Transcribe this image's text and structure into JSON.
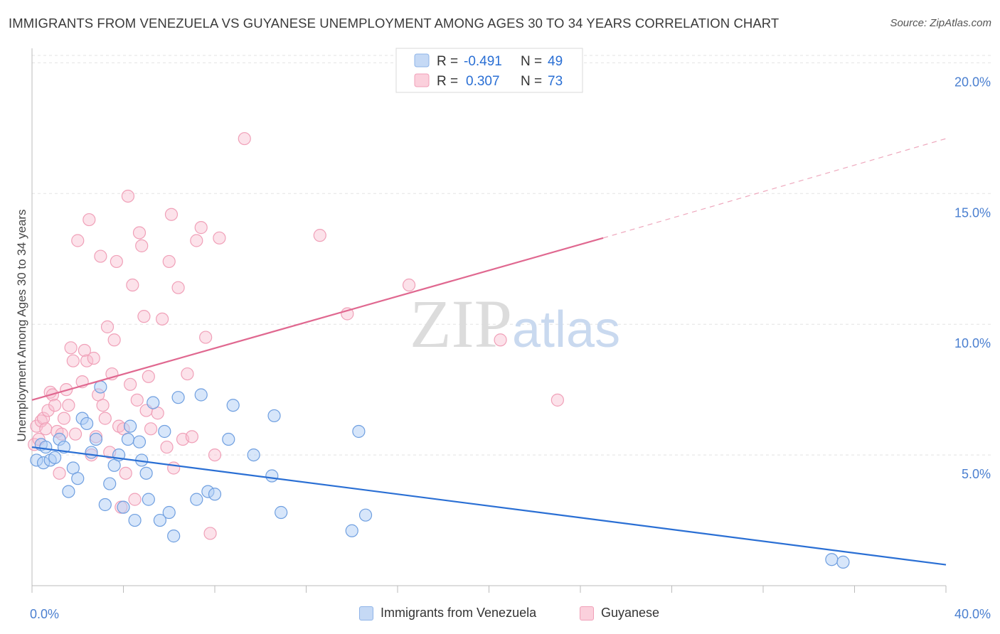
{
  "header": {
    "title": "IMMIGRANTS FROM VENEZUELA VS GUYANESE UNEMPLOYMENT AMONG AGES 30 TO 34 YEARS CORRELATION CHART",
    "source": "Source: ZipAtlas.com"
  },
  "watermark": {
    "zip": "ZIP",
    "atlas": "atlas"
  },
  "stats": [
    {
      "r_label": "R =",
      "r_value": "-0.491",
      "n_label": "N =",
      "n_value": "49"
    },
    {
      "r_label": "R =",
      "r_value": "0.307",
      "n_label": "N =",
      "n_value": "73"
    }
  ],
  "chart_data": {
    "type": "scatter",
    "title": "IMMIGRANTS FROM VENEZUELA VS GUYANESE UNEMPLOYMENT AMONG AGES 30 TO 34 YEARS CORRELATION CHART",
    "xlabel": "",
    "ylabel": "Unemployment Among Ages 30 to 34 years",
    "xlim": [
      0,
      40
    ],
    "ylim": [
      0,
      20.5
    ],
    "x_ticks": [
      0,
      40
    ],
    "x_tick_labels": [
      "0.0%",
      "40.0%"
    ],
    "y_ticks": [
      5,
      10,
      15,
      20
    ],
    "y_tick_labels": [
      "5.0%",
      "10.0%",
      "15.0%",
      "20.0%"
    ],
    "grid": true,
    "legend_position": "bottom-center",
    "colors": {
      "venezuela": "#6f9fe0",
      "guyanese": "#f0a0b8",
      "venezuela_line": "#2a6fd4",
      "guyanese_line": "#e06890"
    },
    "series": [
      {
        "name": "Immigrants from Venezuela",
        "trend": {
          "x": [
            0,
            40
          ],
          "y": [
            5.3,
            0.8
          ]
        },
        "points": [
          [
            0.2,
            4.8
          ],
          [
            0.4,
            5.4
          ],
          [
            0.5,
            4.7
          ],
          [
            0.6,
            5.3
          ],
          [
            0.8,
            4.8
          ],
          [
            1.0,
            4.9
          ],
          [
            1.2,
            5.6
          ],
          [
            1.4,
            5.3
          ],
          [
            1.6,
            3.6
          ],
          [
            1.8,
            4.5
          ],
          [
            2.0,
            4.1
          ],
          [
            2.2,
            6.4
          ],
          [
            2.4,
            6.2
          ],
          [
            2.6,
            5.1
          ],
          [
            2.8,
            5.6
          ],
          [
            3.0,
            7.6
          ],
          [
            3.2,
            3.1
          ],
          [
            3.4,
            3.9
          ],
          [
            3.6,
            4.6
          ],
          [
            3.8,
            5.0
          ],
          [
            4.0,
            3.0
          ],
          [
            4.2,
            5.6
          ],
          [
            4.3,
            6.1
          ],
          [
            4.5,
            2.5
          ],
          [
            4.7,
            5.5
          ],
          [
            4.8,
            4.8
          ],
          [
            5.0,
            4.3
          ],
          [
            5.1,
            3.3
          ],
          [
            5.3,
            7.0
          ],
          [
            5.6,
            2.5
          ],
          [
            5.8,
            5.9
          ],
          [
            6.0,
            2.8
          ],
          [
            6.2,
            1.9
          ],
          [
            6.4,
            7.2
          ],
          [
            7.2,
            3.3
          ],
          [
            7.4,
            7.3
          ],
          [
            7.7,
            3.6
          ],
          [
            8.0,
            3.5
          ],
          [
            8.6,
            5.6
          ],
          [
            8.8,
            6.9
          ],
          [
            9.7,
            5.0
          ],
          [
            10.5,
            4.2
          ],
          [
            10.6,
            6.5
          ],
          [
            10.9,
            2.8
          ],
          [
            14.0,
            2.1
          ],
          [
            14.3,
            5.9
          ],
          [
            14.6,
            2.7
          ],
          [
            35.0,
            1.0
          ],
          [
            35.5,
            0.9
          ]
        ]
      },
      {
        "name": "Guyanese",
        "trend": {
          "x": [
            0,
            25
          ],
          "y": [
            7.1,
            13.3
          ]
        },
        "trend_dashed": {
          "x": [
            25,
            40
          ],
          "y": [
            13.3,
            17.1
          ]
        },
        "points": [
          [
            0.1,
            5.4
          ],
          [
            0.2,
            6.1
          ],
          [
            0.3,
            5.6
          ],
          [
            0.4,
            6.3
          ],
          [
            0.5,
            6.4
          ],
          [
            0.6,
            6.0
          ],
          [
            0.7,
            6.7
          ],
          [
            0.8,
            7.4
          ],
          [
            0.9,
            7.3
          ],
          [
            1.0,
            6.9
          ],
          [
            1.1,
            5.9
          ],
          [
            1.2,
            4.3
          ],
          [
            1.3,
            5.8
          ],
          [
            1.4,
            6.4
          ],
          [
            1.5,
            7.5
          ],
          [
            1.6,
            6.9
          ],
          [
            1.7,
            9.1
          ],
          [
            1.8,
            8.6
          ],
          [
            1.9,
            5.8
          ],
          [
            2.0,
            13.2
          ],
          [
            2.2,
            7.8
          ],
          [
            2.3,
            9.0
          ],
          [
            2.4,
            8.6
          ],
          [
            2.5,
            14.0
          ],
          [
            2.6,
            5.0
          ],
          [
            2.7,
            8.7
          ],
          [
            2.8,
            5.7
          ],
          [
            2.9,
            7.3
          ],
          [
            3.0,
            12.6
          ],
          [
            3.1,
            6.9
          ],
          [
            3.2,
            6.4
          ],
          [
            3.3,
            9.9
          ],
          [
            3.4,
            5.1
          ],
          [
            3.5,
            8.1
          ],
          [
            3.6,
            9.4
          ],
          [
            3.7,
            12.4
          ],
          [
            3.8,
            6.1
          ],
          [
            3.9,
            3.0
          ],
          [
            4.0,
            6.0
          ],
          [
            4.1,
            4.3
          ],
          [
            4.2,
            14.9
          ],
          [
            4.3,
            7.7
          ],
          [
            4.4,
            11.5
          ],
          [
            4.5,
            3.3
          ],
          [
            4.6,
            7.1
          ],
          [
            4.7,
            13.5
          ],
          [
            4.8,
            13.0
          ],
          [
            4.9,
            10.3
          ],
          [
            5.0,
            6.7
          ],
          [
            5.1,
            8.0
          ],
          [
            5.2,
            6.0
          ],
          [
            5.5,
            6.6
          ],
          [
            5.7,
            10.2
          ],
          [
            5.9,
            5.3
          ],
          [
            6.0,
            12.4
          ],
          [
            6.1,
            14.2
          ],
          [
            6.2,
            4.5
          ],
          [
            6.4,
            11.4
          ],
          [
            6.6,
            5.6
          ],
          [
            6.8,
            8.1
          ],
          [
            7.0,
            5.7
          ],
          [
            7.2,
            13.2
          ],
          [
            7.4,
            13.7
          ],
          [
            7.6,
            9.5
          ],
          [
            7.8,
            2.0
          ],
          [
            8.0,
            5.0
          ],
          [
            8.2,
            13.3
          ],
          [
            9.3,
            17.1
          ],
          [
            12.6,
            13.4
          ],
          [
            13.8,
            10.4
          ],
          [
            16.5,
            11.5
          ],
          [
            20.5,
            9.4
          ],
          [
            23.0,
            7.1
          ]
        ]
      }
    ]
  }
}
